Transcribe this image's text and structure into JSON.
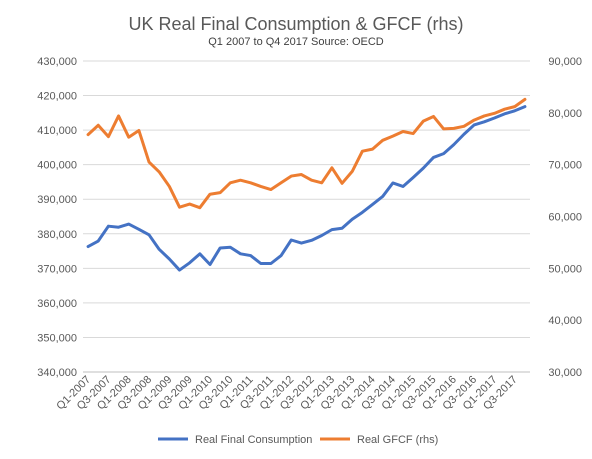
{
  "chart_data": {
    "type": "line",
    "title": "UK Real Final Consumption  & GFCF (rhs)",
    "subtitle": "Q1 2007 to Q4 2017 Source: OECD",
    "x": [
      "Q1-2007",
      "Q2-2007",
      "Q3-2007",
      "Q4-2007",
      "Q1-2008",
      "Q2-2008",
      "Q3-2008",
      "Q4-2008",
      "Q1-2009",
      "Q2-2009",
      "Q3-2009",
      "Q4-2009",
      "Q1-2010",
      "Q2-2010",
      "Q3-2010",
      "Q4-2010",
      "Q1-2011",
      "Q2-2011",
      "Q3-2011",
      "Q4-2011",
      "Q1-2012",
      "Q2-2012",
      "Q3-2012",
      "Q4-2012",
      "Q1-2013",
      "Q2-2013",
      "Q3-2013",
      "Q4-2013",
      "Q1-2014",
      "Q2-2014",
      "Q3-2014",
      "Q4-2014",
      "Q1-2015",
      "Q2-2015",
      "Q3-2015",
      "Q4-2015",
      "Q1-2016",
      "Q2-2016",
      "Q3-2016",
      "Q4-2016",
      "Q1-2017",
      "Q2-2017",
      "Q3-2017",
      "Q4-2017"
    ],
    "x_tick_labels": [
      "Q1-2007",
      "Q3-2007",
      "Q1-2008",
      "Q3-2008",
      "Q1-2009",
      "Q3-2009",
      "Q1-2010",
      "Q3-2010",
      "Q1-2011",
      "Q3-2011",
      "Q1-2012",
      "Q3-2012",
      "Q1-2013",
      "Q3-2013",
      "Q1-2014",
      "Q3-2014",
      "Q1-2015",
      "Q3-2015",
      "Q1-2016",
      "Q3-2016",
      "Q1-2017",
      "Q3-2017"
    ],
    "y_left": {
      "ylim": [
        340000,
        430000
      ],
      "ticks": [
        340000,
        350000,
        360000,
        370000,
        380000,
        390000,
        400000,
        410000,
        420000,
        430000
      ],
      "tick_labels": [
        "340,000",
        "350,000",
        "360,000",
        "370,000",
        "380,000",
        "390,000",
        "400,000",
        "410,000",
        "420,000",
        "430,000"
      ]
    },
    "y_right": {
      "ylim": [
        30000,
        90000
      ],
      "ticks": [
        30000,
        40000,
        50000,
        60000,
        70000,
        80000,
        90000
      ],
      "tick_labels": [
        "30,000",
        "40,000",
        "50,000",
        "60,000",
        "70,000",
        "80,000",
        "90,000"
      ]
    },
    "series": [
      {
        "name": "Real Final Consumption",
        "axis": "left",
        "color": "#4472C4",
        "values": [
          376300,
          377900,
          382200,
          381900,
          382800,
          381300,
          379700,
          375500,
          372700,
          369500,
          371600,
          374200,
          371100,
          375900,
          376100,
          374200,
          373700,
          371400,
          371400,
          373700,
          378200,
          377300,
          378100,
          379500,
          381200,
          381600,
          384200,
          386200,
          388500,
          390800,
          394700,
          393700,
          396300,
          399000,
          402100,
          403200,
          405800,
          408800,
          411500,
          412400,
          413500,
          414700,
          415600,
          416800
        ],
        "tick": null
      },
      {
        "name": "Real GFCF (rhs)",
        "axis": "right",
        "color": "#ED7D31",
        "values": [
          75800,
          77600,
          75400,
          79400,
          75300,
          76600,
          70500,
          68600,
          65800,
          61800,
          62400,
          61700,
          64300,
          64600,
          66500,
          67000,
          66500,
          65800,
          65200,
          66500,
          67800,
          68100,
          67000,
          66500,
          69400,
          66400,
          68700,
          72600,
          73000,
          74700,
          75500,
          76400,
          76000,
          78400,
          79300,
          76900,
          77000,
          77400,
          78600,
          79400,
          79900,
          80700,
          81200,
          82600
        ]
      }
    ],
    "legend": "bottom",
    "grid": "horizontal"
  }
}
